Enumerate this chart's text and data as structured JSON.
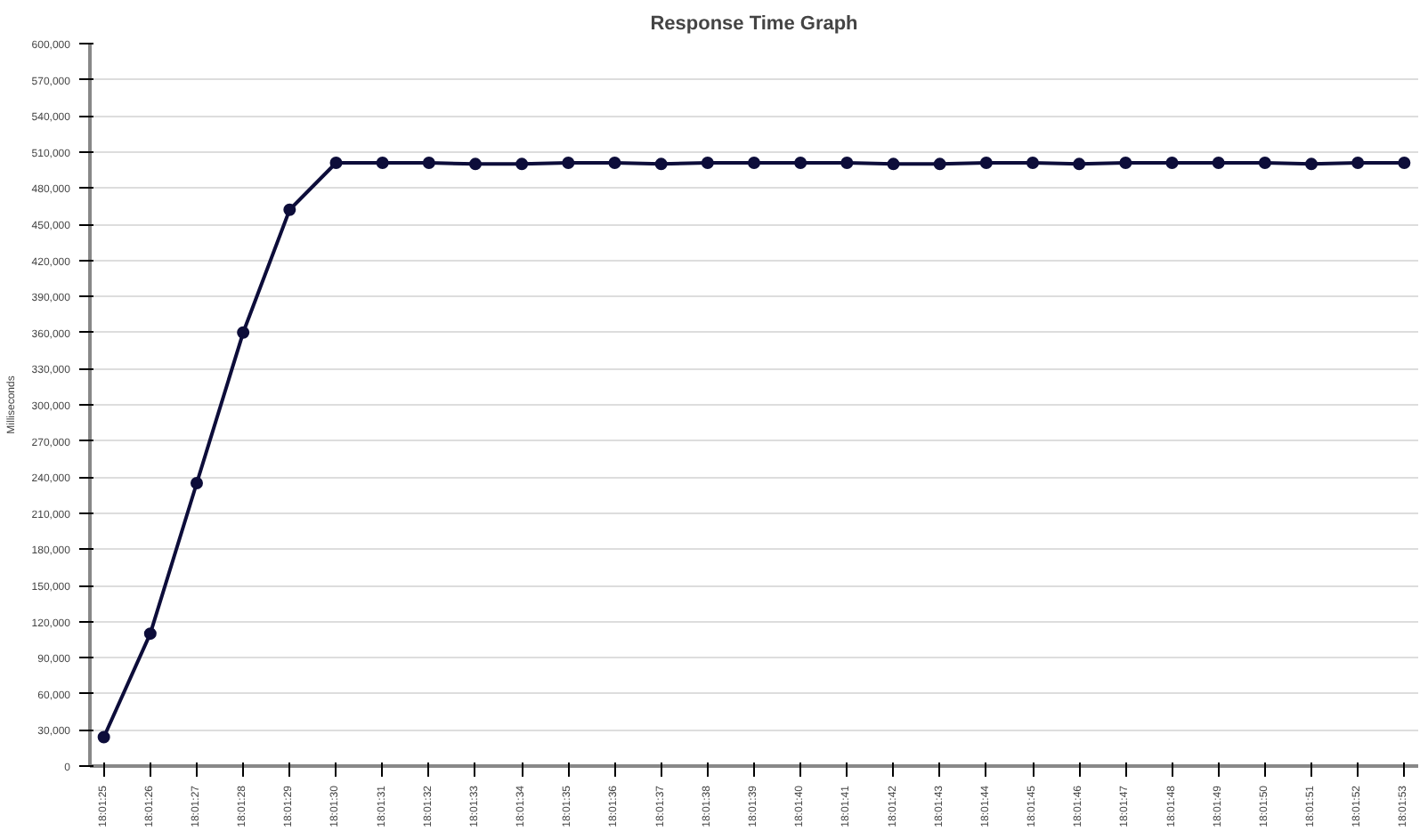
{
  "chart_data": {
    "type": "line",
    "title": "Response Time Graph",
    "ylabel": "Milliseconds",
    "categories": [
      "18:01:25",
      "18:01:26",
      "18:01:27",
      "18:01:28",
      "18:01:29",
      "18:01:30",
      "18:01:31",
      "18:01:32",
      "18:01:33",
      "18:01:34",
      "18:01:35",
      "18:01:36",
      "18:01:37",
      "18:01:38",
      "18:01:39",
      "18:01:40",
      "18:01:41",
      "18:01:42",
      "18:01:43",
      "18:01:44",
      "18:01:45",
      "18:01:46",
      "18:01:47",
      "18:01:48",
      "18:01:49",
      "18:01:50",
      "18:01:51",
      "18:01:52",
      "18:01:53"
    ],
    "series": [
      {
        "color": "#0d0d3a",
        "values": [
          24000,
          110000,
          235000,
          360000,
          462000,
          501000,
          501000,
          501000,
          500000,
          500000,
          501000,
          501000,
          500000,
          501000,
          501000,
          501000,
          501000,
          500000,
          500000,
          501000,
          501000,
          500000,
          501000,
          501000,
          501000,
          501000,
          500000,
          501000,
          501000
        ]
      }
    ],
    "ylim": [
      0,
      600000
    ],
    "yticks": [
      {
        "value": 0,
        "label": "0"
      },
      {
        "value": 30000,
        "label": "30,000"
      },
      {
        "value": 60000,
        "label": "60,000"
      },
      {
        "value": 90000,
        "label": "90,000"
      },
      {
        "value": 120000,
        "label": "120,000"
      },
      {
        "value": 150000,
        "label": "150,000"
      },
      {
        "value": 180000,
        "label": "180,000"
      },
      {
        "value": 210000,
        "label": "210,000"
      },
      {
        "value": 240000,
        "label": "240,000"
      },
      {
        "value": 270000,
        "label": "270,000"
      },
      {
        "value": 300000,
        "label": "300,000"
      },
      {
        "value": 330000,
        "label": "330,000"
      },
      {
        "value": 360000,
        "label": "360,000"
      },
      {
        "value": 390000,
        "label": "390,000"
      },
      {
        "value": 420000,
        "label": "420,000"
      },
      {
        "value": 450000,
        "label": "450,000"
      },
      {
        "value": 480000,
        "label": "480,000"
      },
      {
        "value": 510000,
        "label": "510,000"
      },
      {
        "value": 540000,
        "label": "540,000"
      },
      {
        "value": 570000,
        "label": "570,000"
      },
      {
        "value": 600000,
        "label": "600,000"
      }
    ],
    "grid": "y",
    "marker": "circle",
    "line_style": "solid"
  }
}
